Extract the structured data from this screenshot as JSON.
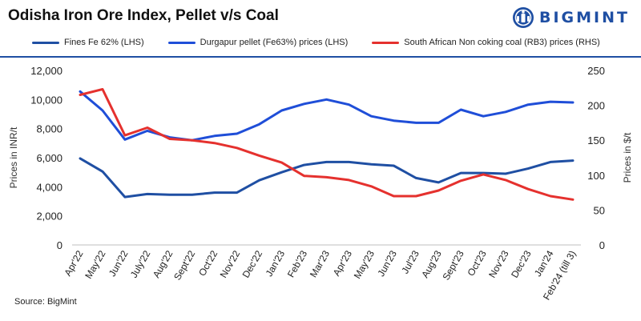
{
  "header": {
    "title": "Odisha Iron Ore Index, Pellet v/s Coal",
    "logo_text": "BIGMINT"
  },
  "footer": {
    "source": "Source: BigMint"
  },
  "colors": {
    "fines": "#1f4fa3",
    "pellet": "#1f4ed8",
    "coal": "#e5312e",
    "accent": "#1f4fa3"
  },
  "chart_data": {
    "type": "line",
    "title": "Odisha Iron Ore Index, Pellet v/s Coal",
    "categories": [
      "Apr'22",
      "May'22",
      "Jun'22",
      "July'22",
      "Aug'22",
      "Sept'22",
      "Oct'22",
      "Nov'22",
      "Dec'22",
      "Jan'23",
      "Feb'23",
      "Mar'23",
      "Apr'23",
      "May'23",
      "Jun'23",
      "Jul'23",
      "Aug'23",
      "Sept'23",
      "Oct'23",
      "Nov'23",
      "Dec'23",
      "Jan'24",
      "Feb'24 (till 3)"
    ],
    "ylabel_left": "Prices in INR/t",
    "ylabel_right": "Prices in $/t",
    "ylim_left": [
      0,
      12000
    ],
    "ylim_right": [
      0,
      250
    ],
    "yticks_left": [
      "0",
      "2,000",
      "4,000",
      "6,000",
      "8,000",
      "10,000",
      "12,000"
    ],
    "yticks_right": [
      "0",
      "50",
      "100",
      "150",
      "200",
      "250"
    ],
    "grid": false,
    "legend_position": "top",
    "series": [
      {
        "name": "Fines Fe 62% (LHS)",
        "axis": "left",
        "color_key": "fines",
        "values": [
          5950,
          5050,
          3300,
          3500,
          3450,
          3450,
          3600,
          3600,
          4450,
          5000,
          5500,
          5700,
          5700,
          5550,
          5450,
          4600,
          4300,
          4950,
          4950,
          4900,
          5250,
          5700,
          5800
        ]
      },
      {
        "name": "Durgapur pellet (Fe63%) prices (LHS)",
        "axis": "left",
        "color_key": "pellet",
        "values": [
          10550,
          9250,
          7250,
          7850,
          7400,
          7200,
          7500,
          7650,
          8300,
          9250,
          9700,
          10000,
          9650,
          8850,
          8550,
          8400,
          8400,
          9300,
          8850,
          9150,
          9650,
          9850,
          9800
        ]
      },
      {
        "name": "South African Non coking coal (RB3) prices (RHS)",
        "axis": "right",
        "color_key": "coal",
        "values": [
          215,
          223,
          157,
          168,
          152,
          150,
          146,
          139,
          128,
          118,
          99,
          97,
          93,
          84,
          70,
          70,
          78,
          92,
          101,
          93,
          80,
          70,
          65
        ]
      }
    ]
  }
}
